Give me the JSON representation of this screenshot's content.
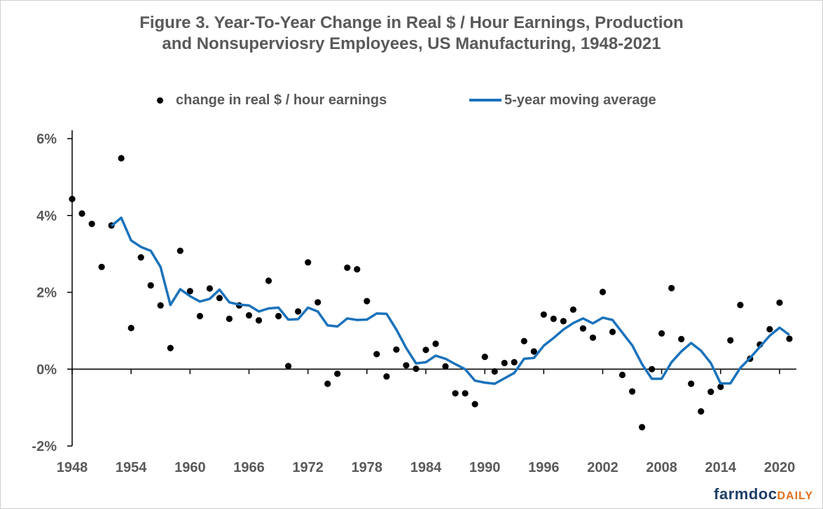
{
  "title_line1": "Figure 3. Year-To-Year Change in Real $ / Hour Earnings, Production",
  "title_line2": "and Nonsuperviosry Employees, US Manufacturing, 1948-2021",
  "legend": {
    "points_label": "change in real $ / hour earnings",
    "line_label": "5-year moving average"
  },
  "brand": {
    "part1": "farmdoc",
    "part2": "DAILY"
  },
  "colors": {
    "line": "#1a72bb",
    "points": "#000000",
    "text": "#595959",
    "axis": "#000000"
  },
  "chart_data": {
    "type": "scatter",
    "title": "Figure 3. Year-To-Year Change in Real $ / Hour Earnings, Production and Nonsuperviosry Employees, US Manufacturing, 1948-2021",
    "xlabel": "",
    "ylabel": "",
    "xlim": [
      1948,
      2021
    ],
    "ylim": [
      -2,
      6
    ],
    "x_ticks": [
      1948,
      1954,
      1960,
      1966,
      1972,
      1978,
      1984,
      1990,
      1996,
      2002,
      2008,
      2014,
      2020
    ],
    "y_ticks": [
      -2,
      0,
      2,
      4,
      6
    ],
    "y_tick_labels": [
      "-2%",
      "0%",
      "2%",
      "4%",
      "6%"
    ],
    "legend_position": "top",
    "grid": false,
    "series": [
      {
        "name": "change in real $ / hour earnings",
        "type": "scatter",
        "x": [
          1948,
          1949,
          1950,
          1951,
          1952,
          1953,
          1954,
          1955,
          1956,
          1957,
          1958,
          1959,
          1960,
          1961,
          1962,
          1963,
          1964,
          1965,
          1966,
          1967,
          1968,
          1969,
          1970,
          1971,
          1972,
          1973,
          1974,
          1975,
          1976,
          1977,
          1978,
          1979,
          1980,
          1981,
          1982,
          1983,
          1984,
          1985,
          1986,
          1987,
          1988,
          1989,
          1990,
          1991,
          1992,
          1993,
          1994,
          1995,
          1996,
          1997,
          1998,
          1999,
          2000,
          2001,
          2002,
          2003,
          2004,
          2005,
          2006,
          2007,
          2008,
          2009,
          2010,
          2011,
          2012,
          2013,
          2014,
          2015,
          2016,
          2017,
          2018,
          2019,
          2020,
          2021
        ],
        "y": [
          4.43,
          4.05,
          3.78,
          2.66,
          3.74,
          5.49,
          1.07,
          2.91,
          2.18,
          1.66,
          0.55,
          3.08,
          2.03,
          1.38,
          2.1,
          1.85,
          1.31,
          1.66,
          1.4,
          1.27,
          2.3,
          1.38,
          0.08,
          1.5,
          2.78,
          1.74,
          -0.38,
          -0.12,
          2.64,
          2.6,
          1.77,
          0.39,
          -0.19,
          0.51,
          0.1,
          0.01,
          0.5,
          0.66,
          0.07,
          -0.63,
          -0.63,
          -0.91,
          0.32,
          -0.06,
          0.16,
          0.18,
          0.73,
          0.46,
          1.42,
          1.31,
          1.25,
          1.55,
          1.06,
          0.82,
          2.01,
          0.97,
          -0.15,
          -0.58,
          -1.51,
          0.0,
          0.93,
          2.11,
          0.78,
          -0.38,
          -1.1,
          -0.59,
          -0.46,
          0.75,
          1.67,
          0.27,
          0.64,
          1.04,
          1.73,
          0.79
        ]
      },
      {
        "name": "5-year moving average",
        "type": "line",
        "x": [
          1952,
          1953,
          1954,
          1955,
          1956,
          1957,
          1958,
          1959,
          1960,
          1961,
          1962,
          1963,
          1964,
          1965,
          1966,
          1967,
          1968,
          1969,
          1970,
          1971,
          1972,
          1973,
          1974,
          1975,
          1976,
          1977,
          1978,
          1979,
          1980,
          1981,
          1982,
          1983,
          1984,
          1985,
          1986,
          1987,
          1988,
          1989,
          1990,
          1991,
          1992,
          1993,
          1994,
          1995,
          1996,
          1997,
          1998,
          1999,
          2000,
          2001,
          2002,
          2003,
          2004,
          2005,
          2006,
          2007,
          2008,
          2009,
          2010,
          2011,
          2012,
          2013,
          2014,
          2015,
          2016,
          2017,
          2018,
          2019,
          2020,
          2021
        ],
        "y": [
          3.73,
          3.94,
          3.35,
          3.18,
          3.08,
          2.66,
          1.67,
          2.08,
          1.9,
          1.76,
          1.83,
          2.07,
          1.74,
          1.68,
          1.66,
          1.5,
          1.58,
          1.6,
          1.29,
          1.3,
          1.6,
          1.5,
          1.14,
          1.11,
          1.32,
          1.28,
          1.29,
          1.45,
          1.44,
          1.03,
          0.55,
          0.15,
          0.18,
          0.35,
          0.27,
          0.13,
          0.0,
          -0.3,
          -0.35,
          -0.38,
          -0.24,
          -0.1,
          0.27,
          0.29,
          0.61,
          0.81,
          1.03,
          1.2,
          1.32,
          1.19,
          1.34,
          1.28,
          0.95,
          0.62,
          0.13,
          -0.25,
          -0.25,
          0.18,
          0.46,
          0.68,
          0.48,
          0.16,
          -0.37,
          -0.37,
          0.03,
          0.29,
          0.58,
          0.87,
          1.08,
          0.89
        ]
      }
    ]
  }
}
